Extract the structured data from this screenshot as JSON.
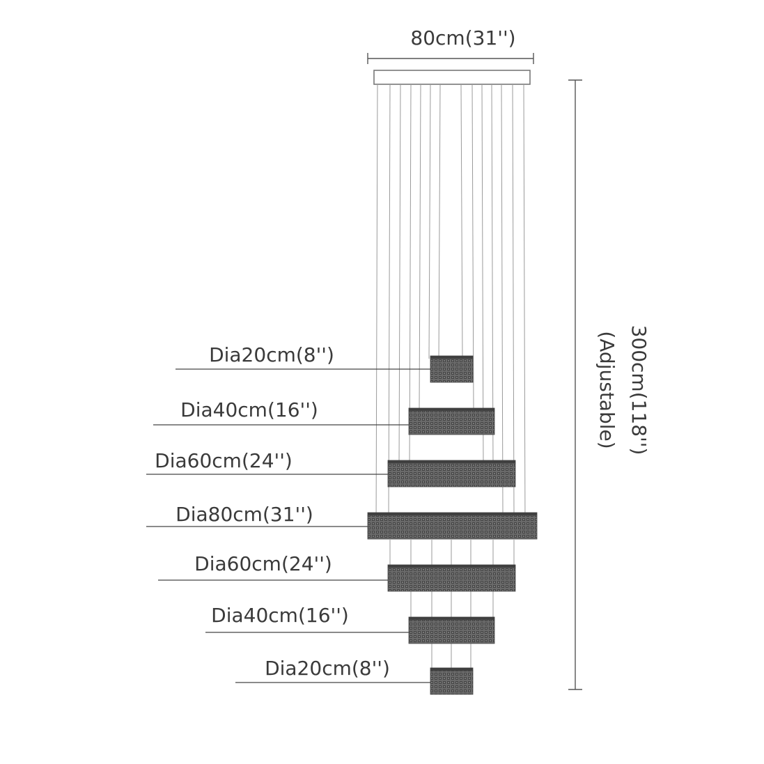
{
  "canopy_width_label": "80cm(31'')",
  "height_label": "300cm(118'')",
  "height_note": "(Adjustable)",
  "tiers": [
    {
      "label": "Dia20cm(8'')"
    },
    {
      "label": "Dia40cm(16'')"
    },
    {
      "label": "Dia60cm(24'')"
    },
    {
      "label": "Dia80cm(31'')"
    },
    {
      "label": "Dia60cm(24'')"
    },
    {
      "label": "Dia40cm(16'')"
    },
    {
      "label": "Dia20cm(8'')"
    }
  ],
  "colors": {
    "crystal": "#5f5f5f",
    "crystal_dark": "#3f3f3f",
    "line": "#555555"
  }
}
